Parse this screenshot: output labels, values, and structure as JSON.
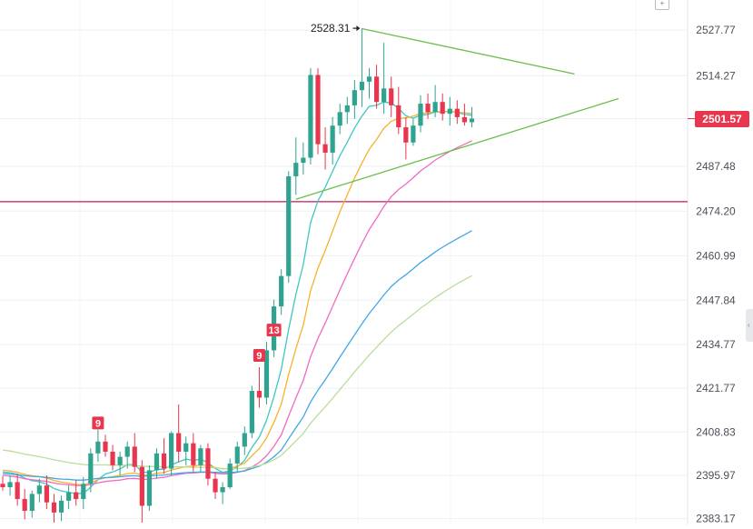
{
  "chart_data": {
    "type": "candlestick",
    "yaxis": {
      "ticks": [
        "2527.77",
        "2514.27",
        "2501.57",
        "2487.48",
        "2474.20",
        "2460.99",
        "2447.84",
        "2434.77",
        "2421.77",
        "2408.83",
        "2395.97",
        "2383.17"
      ],
      "tick_values": [
        2527.77,
        2514.27,
        2501.57,
        2487.48,
        2474.2,
        2460.99,
        2447.84,
        2434.77,
        2421.77,
        2408.83,
        2395.97,
        2383.17
      ],
      "ylim": [
        2381.2,
        2535.6
      ]
    },
    "current_price": {
      "value": 2501.57,
      "label": "2501.57",
      "color": "#e8364e"
    },
    "high_annotation": {
      "value": 2528.31,
      "label": "2528.31"
    },
    "horizontal_level": {
      "value": 2477.0,
      "color": "#c2185b"
    },
    "sequence_markers": [
      {
        "label": "9",
        "index": 13,
        "value": 2411.5
      },
      {
        "label": "9",
        "index": 35,
        "value": 2431.5
      },
      {
        "label": "13",
        "index": 37,
        "value": 2439.0
      }
    ],
    "trendlines": [
      {
        "name": "",
        "from": [
          49,
          2528.2
        ],
        "to": [
          78,
          2514.8
        ],
        "color": "#6abf4b"
      },
      {
        "name": "",
        "from": [
          40,
          2477.7
        ],
        "to": [
          84,
          2507.5
        ],
        "color": "#6abf4b"
      }
    ],
    "candles": [
      [
        2393.5,
        2395.8,
        2391.5,
        2392.5
      ],
      [
        2392.5,
        2396.0,
        2390.0,
        2394.0
      ],
      [
        2394.0,
        2396.5,
        2387.0,
        2389.0
      ],
      [
        2389.0,
        2392.0,
        2383.0,
        2385.5
      ],
      [
        2385.5,
        2391.5,
        2383.5,
        2390.5
      ],
      [
        2390.5,
        2395.0,
        2388.0,
        2393.0
      ],
      [
        2393.0,
        2396.0,
        2386.0,
        2388.0
      ],
      [
        2388.0,
        2390.5,
        2382.0,
        2385.0
      ],
      [
        2385.0,
        2390.0,
        2382.5,
        2388.5
      ],
      [
        2388.5,
        2393.0,
        2386.0,
        2391.0
      ],
      [
        2391.0,
        2394.5,
        2387.0,
        2389.0
      ],
      [
        2389.0,
        2395.5,
        2386.0,
        2393.5
      ],
      [
        2393.5,
        2404.0,
        2391.0,
        2402.5
      ],
      [
        2402.5,
        2409.5,
        2400.0,
        2406.0
      ],
      [
        2406.0,
        2408.0,
        2401.5,
        2403.0
      ],
      [
        2403.0,
        2405.0,
        2397.5,
        2399.0
      ],
      [
        2399.0,
        2403.0,
        2396.0,
        2401.5
      ],
      [
        2401.5,
        2406.0,
        2398.0,
        2404.5
      ],
      [
        2404.5,
        2408.5,
        2397.0,
        2398.5
      ],
      [
        2398.5,
        2400.5,
        2382.0,
        2387.0
      ],
      [
        2387.0,
        2399.0,
        2385.5,
        2397.5
      ],
      [
        2397.5,
        2404.0,
        2395.0,
        2402.5
      ],
      [
        2402.5,
        2407.0,
        2396.5,
        2398.0
      ],
      [
        2398.0,
        2409.0,
        2396.0,
        2408.5
      ],
      [
        2408.5,
        2417.0,
        2400.0,
        2403.0
      ],
      [
        2403.0,
        2407.5,
        2399.0,
        2405.5
      ],
      [
        2405.5,
        2408.5,
        2397.0,
        2399.0
      ],
      [
        2399.0,
        2405.0,
        2397.0,
        2404.0
      ],
      [
        2404.0,
        2405.5,
        2393.0,
        2395.0
      ],
      [
        2395.0,
        2397.0,
        2389.0,
        2391.0
      ],
      [
        2391.0,
        2394.0,
        2387.5,
        2392.5
      ],
      [
        2392.5,
        2401.0,
        2392.0,
        2399.5
      ],
      [
        2399.5,
        2406.0,
        2397.0,
        2404.5
      ],
      [
        2404.5,
        2410.5,
        2402.0,
        2408.5
      ],
      [
        2408.5,
        2422.5,
        2407.0,
        2421.0
      ],
      [
        2421.0,
        2428.0,
        2416.0,
        2419.0
      ],
      [
        2419.0,
        2435.5,
        2417.0,
        2433.0
      ],
      [
        2433.0,
        2448.0,
        2431.0,
        2446.0
      ],
      [
        2446.0,
        2457.0,
        2443.5,
        2455.0
      ],
      [
        2455.0,
        2486.0,
        2453.0,
        2484.5
      ],
      [
        2484.5,
        2496.0,
        2479.0,
        2488.5
      ],
      [
        2488.5,
        2494.5,
        2485.0,
        2490.0
      ],
      [
        2490.0,
        2516.5,
        2488.0,
        2514.5
      ],
      [
        2514.5,
        2516.5,
        2491.0,
        2494.0
      ],
      [
        2494.0,
        2499.0,
        2486.5,
        2491.5
      ],
      [
        2491.5,
        2502.0,
        2488.0,
        2499.5
      ],
      [
        2499.5,
        2506.0,
        2497.0,
        2503.5
      ],
      [
        2503.5,
        2508.0,
        2500.0,
        2505.5
      ],
      [
        2505.5,
        2513.0,
        2501.5,
        2510.0
      ],
      [
        2510.0,
        2528.3,
        2505.0,
        2512.5
      ],
      [
        2512.5,
        2516.5,
        2507.5,
        2514.0
      ],
      [
        2514.0,
        2517.5,
        2504.5,
        2506.5
      ],
      [
        2506.5,
        2524.0,
        2503.0,
        2510.5
      ],
      [
        2510.5,
        2514.0,
        2502.0,
        2505.5
      ],
      [
        2505.5,
        2511.0,
        2497.0,
        2499.0
      ],
      [
        2499.0,
        2502.0,
        2489.5,
        2494.5
      ],
      [
        2494.5,
        2501.5,
        2493.5,
        2499.5
      ],
      [
        2499.5,
        2508.5,
        2497.5,
        2506.0
      ],
      [
        2506.0,
        2509.0,
        2501.5,
        2503.5
      ],
      [
        2503.5,
        2511.5,
        2502.0,
        2506.5
      ],
      [
        2506.5,
        2509.0,
        2501.0,
        2503.0
      ],
      [
        2503.0,
        2508.0,
        2499.5,
        2504.5
      ],
      [
        2504.5,
        2507.0,
        2500.0,
        2502.0
      ],
      [
        2502.0,
        2506.0,
        2499.5,
        2500.5
      ],
      [
        2500.5,
        2505.0,
        2499.0,
        2501.57
      ]
    ],
    "ma_lines": [
      {
        "color": "#3fc7c0",
        "values": [
          2397.0,
          2396.8,
          2396.3,
          2395.2,
          2394.4,
          2394.1,
          2393.4,
          2392.1,
          2391.4,
          2391.0,
          2390.6,
          2390.7,
          2392.5,
          2394.7,
          2396.4,
          2397.0,
          2397.9,
          2399.2,
          2399.2,
          2397.0,
          2396.8,
          2397.8,
          2397.8,
          2399.1,
          2400.0,
          2400.8,
          2400.4,
          2400.8,
          2399.7,
          2398.0,
          2396.9,
          2397.3,
          2398.5,
          2400.4,
          2404.3,
          2407.3,
          2412.3,
          2419.3,
          2427.4,
          2439.1,
          2449.6,
          2458.4,
          2470.8,
          2477.2,
          2481.3,
          2486.0,
          2490.6,
          2494.6,
          2498.8,
          2502.3,
          2505.2,
          2505.5,
          2506.5,
          2506.2,
          2504.6,
          2502.4,
          2501.7,
          2502.6,
          2502.8,
          2503.6,
          2503.5,
          2503.8,
          2503.4,
          2502.8,
          2502.6
        ]
      },
      {
        "color": "#f7b12b",
        "values": [
          2397.5,
          2397.3,
          2396.9,
          2396.3,
          2395.9,
          2395.6,
          2395.2,
          2394.5,
          2394.0,
          2393.7,
          2393.3,
          2393.2,
          2393.8,
          2394.7,
          2395.3,
          2395.6,
          2396.0,
          2396.5,
          2396.7,
          2396.1,
          2396.1,
          2396.6,
          2396.8,
          2397.6,
          2398.1,
          2398.6,
          2398.7,
          2399.1,
          2398.9,
          2398.3,
          2397.9,
          2398.1,
          2398.7,
          2399.6,
          2401.8,
          2403.9,
          2407.1,
          2411.7,
          2417.1,
          2425.8,
          2433.5,
          2440.5,
          2450.6,
          2457.3,
          2462.6,
          2468.3,
          2474.0,
          2479.0,
          2484.0,
          2488.4,
          2492.5,
          2495.4,
          2498.7,
          2500.8,
          2501.6,
          2501.8,
          2502.3,
          2503.1,
          2503.3,
          2503.7,
          2503.6,
          2503.7,
          2503.5,
          2503.3,
          2503.1
        ]
      },
      {
        "color": "#f06bc3",
        "values": [
          2396.0,
          2395.8,
          2395.5,
          2395.0,
          2394.7,
          2394.5,
          2394.2,
          2393.7,
          2393.4,
          2393.2,
          2393.0,
          2392.9,
          2393.3,
          2393.8,
          2394.2,
          2394.4,
          2394.6,
          2395.0,
          2395.1,
          2394.8,
          2394.9,
          2395.2,
          2395.4,
          2395.9,
          2396.3,
          2396.6,
          2396.7,
          2396.9,
          2396.9,
          2396.6,
          2396.4,
          2396.5,
          2396.9,
          2397.4,
          2398.5,
          2399.8,
          2401.8,
          2404.6,
          2408.0,
          2413.5,
          2418.9,
          2424.1,
          2431.1,
          2436.5,
          2441.1,
          2446.0,
          2450.9,
          2455.6,
          2460.2,
          2464.6,
          2468.7,
          2472.1,
          2475.6,
          2478.5,
          2480.6,
          2482.2,
          2484.1,
          2486.1,
          2487.6,
          2489.3,
          2490.6,
          2491.9,
          2493.0,
          2494.0,
          2495.0
        ]
      },
      {
        "color": "#42a6e8",
        "values": [
          2396.5,
          2396.4,
          2396.2,
          2395.9,
          2395.7,
          2395.6,
          2395.4,
          2395.1,
          2394.9,
          2394.8,
          2394.6,
          2394.6,
          2394.8,
          2395.1,
          2395.3,
          2395.4,
          2395.6,
          2395.8,
          2395.9,
          2395.7,
          2395.8,
          2396.0,
          2396.1,
          2396.4,
          2396.6,
          2396.8,
          2396.9,
          2397.0,
          2397.0,
          2396.9,
          2396.8,
          2396.8,
          2397.0,
          2397.3,
          2398.0,
          2398.7,
          2399.9,
          2401.5,
          2403.5,
          2406.8,
          2410.1,
          2413.3,
          2417.7,
          2421.2,
          2424.3,
          2427.6,
          2431.0,
          2434.3,
          2437.6,
          2440.8,
          2443.9,
          2446.6,
          2449.4,
          2451.9,
          2453.8,
          2455.4,
          2457.1,
          2459.0,
          2460.5,
          2462.1,
          2463.5,
          2464.8,
          2466.0,
          2467.2,
          2468.4
        ]
      },
      {
        "color": "#b9de9a",
        "values": [
          2403.5,
          2403.2,
          2402.8,
          2402.3,
          2401.9,
          2401.5,
          2401.1,
          2400.6,
          2400.2,
          2399.8,
          2399.5,
          2399.2,
          2399.1,
          2399.1,
          2399.1,
          2399.0,
          2399.0,
          2399.0,
          2398.9,
          2398.7,
          2398.6,
          2398.6,
          2398.5,
          2398.5,
          2398.5,
          2398.5,
          2398.4,
          2398.4,
          2398.3,
          2398.2,
          2398.0,
          2398.0,
          2398.0,
          2398.1,
          2398.5,
          2398.9,
          2399.6,
          2400.6,
          2401.9,
          2404.0,
          2406.2,
          2408.4,
          2411.4,
          2413.9,
          2416.3,
          2418.8,
          2421.4,
          2424.0,
          2426.6,
          2429.1,
          2431.6,
          2433.9,
          2436.2,
          2438.4,
          2440.3,
          2442.0,
          2443.7,
          2445.5,
          2447.0,
          2448.6,
          2450.0,
          2451.4,
          2452.7,
          2453.9,
          2455.1
        ]
      }
    ]
  }
}
